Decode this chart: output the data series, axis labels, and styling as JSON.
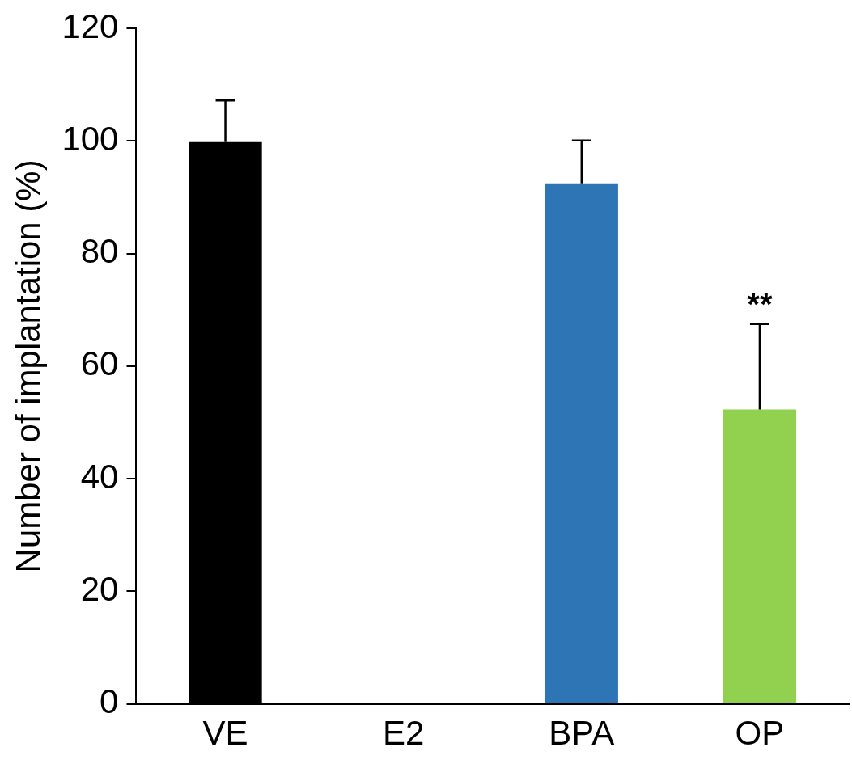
{
  "chart_data": {
    "type": "bar",
    "ylabel": "Number of implantation (%)",
    "categories": [
      "VE",
      "E2",
      "BPA",
      "OP"
    ],
    "values": [
      99.8,
      0,
      92.5,
      52.3
    ],
    "colors": [
      "#000000",
      "#000000",
      "#2e75b6",
      "#92d050"
    ],
    "errors": [
      [
        99.8,
        107.2
      ],
      null,
      [
        92.5,
        100.1
      ],
      [
        52.3,
        67.5
      ]
    ],
    "ylim": [
      0,
      120
    ],
    "yticks": [
      0,
      20,
      40,
      60,
      80,
      100,
      120
    ],
    "annotations": [
      {
        "text": "**",
        "x": "OP",
        "y": 67.5
      }
    ]
  }
}
